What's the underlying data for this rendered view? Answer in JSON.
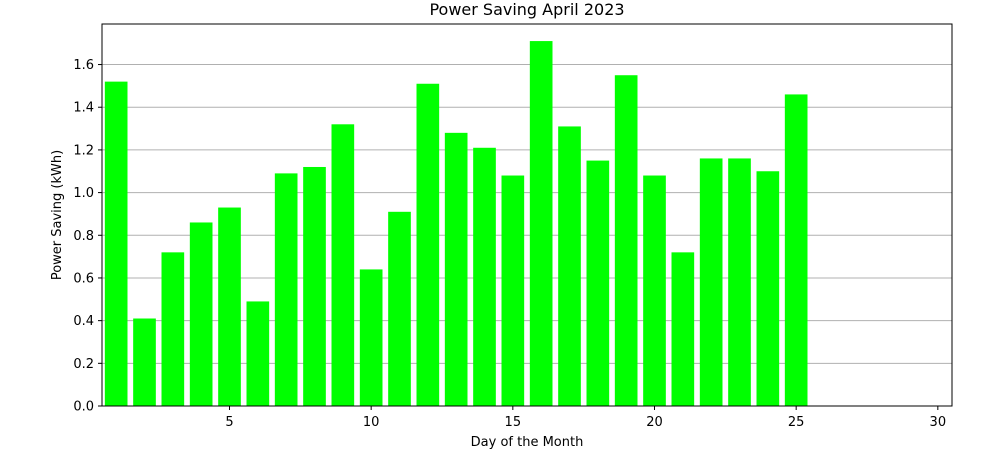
{
  "chart_data": {
    "type": "bar",
    "title": "Power Saving April 2023",
    "xlabel": "Day of the Month",
    "ylabel": "Power Saving (kWh)",
    "x": [
      1,
      2,
      3,
      4,
      5,
      6,
      7,
      8,
      9,
      10,
      11,
      12,
      13,
      14,
      15,
      16,
      17,
      18,
      19,
      20,
      21,
      22,
      23,
      24,
      25
    ],
    "values": [
      1.52,
      0.41,
      0.72,
      0.86,
      0.93,
      0.49,
      1.09,
      1.12,
      1.32,
      0.64,
      0.91,
      1.51,
      1.28,
      1.21,
      1.08,
      1.71,
      1.31,
      1.15,
      1.55,
      1.08,
      0.72,
      1.16,
      1.16,
      1.1,
      1.46
    ],
    "xlim": [
      0.5,
      30.5
    ],
    "ylim": [
      0,
      1.79
    ],
    "xticks": [
      5,
      10,
      15,
      20,
      25,
      30
    ],
    "yticks": [
      0.0,
      0.2,
      0.4,
      0.6,
      0.8,
      1.0,
      1.2,
      1.4,
      1.6
    ],
    "ytick_labels": [
      "0.0",
      "0.2",
      "0.4",
      "0.6",
      "0.8",
      "1.0",
      "1.2",
      "1.4",
      "1.6"
    ],
    "grid": "y",
    "bar_color": "#00ff00"
  }
}
